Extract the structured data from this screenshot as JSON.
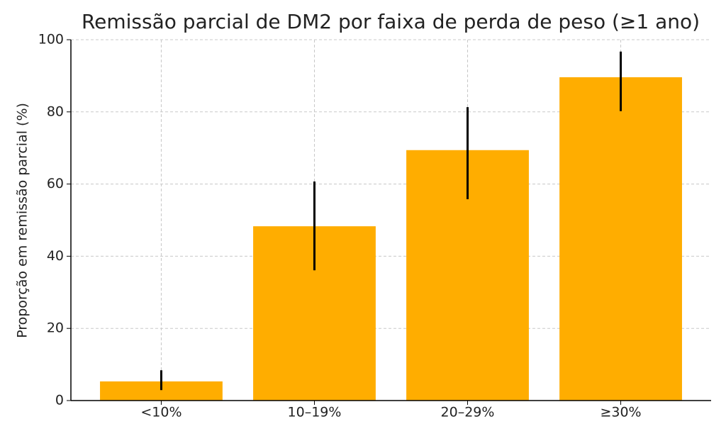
{
  "chart_data": {
    "type": "bar",
    "title": "Remissão parcial de DM2 por faixa de perda de peso (≥1 ano)",
    "y_label": "Proporção em remissão parcial (%)",
    "categories": [
      "<10%",
      "10–19%",
      "20–29%",
      "≥30%"
    ],
    "values": [
      5.3,
      48.3,
      69.4,
      89.6
    ],
    "error_lower": [
      2.9,
      36.1,
      55.8,
      80.2
    ],
    "error_upper": [
      8.4,
      60.7,
      81.3,
      96.7
    ],
    "color": "#ffad00",
    "ylim": [
      0,
      100
    ],
    "yticks": [
      0,
      20,
      40,
      60,
      80,
      100
    ],
    "grid": true
  }
}
